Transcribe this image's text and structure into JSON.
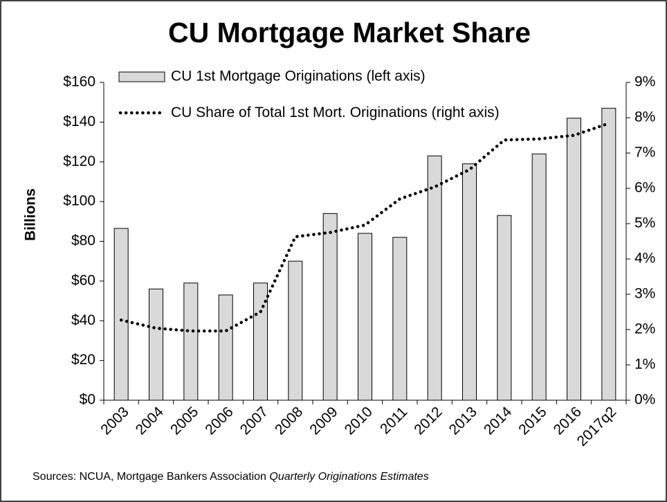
{
  "chart_data": {
    "type": "bar-line",
    "title": "CU Mortgage Market Share",
    "y_label": "Billions",
    "categories": [
      "2003",
      "2004",
      "2005",
      "2006",
      "2007",
      "2008",
      "2009",
      "2010",
      "2011",
      "2012",
      "2013",
      "2014",
      "2015",
      "2016",
      "2017q2"
    ],
    "series": [
      {
        "name": "CU 1st Mortgage Originations (left axis)",
        "type": "bar",
        "color": "#d9d9d9",
        "axis": "y",
        "values": [
          86.5,
          56,
          59,
          53,
          59,
          70,
          94,
          84,
          82,
          123,
          119,
          93,
          124,
          142,
          147
        ]
      },
      {
        "name": "CU Share of Total 1st Mort. Originations (right axis)",
        "type": "line",
        "color": "#000000",
        "axis": "y2",
        "values": [
          2.27,
          2.04,
          1.96,
          1.96,
          2.5,
          4.63,
          4.75,
          4.96,
          5.7,
          6.04,
          6.53,
          7.37,
          7.4,
          7.5,
          7.84
        ]
      }
    ],
    "ylim": [
      0,
      160
    ],
    "yticks": [
      {
        "value": 0,
        "label": "$0"
      },
      {
        "value": 20,
        "label": "$20"
      },
      {
        "value": 40,
        "label": "$40"
      },
      {
        "value": 60,
        "label": "$60"
      },
      {
        "value": 80,
        "label": "$80"
      },
      {
        "value": 100,
        "label": "$100"
      },
      {
        "value": 120,
        "label": "$120"
      },
      {
        "value": 140,
        "label": "$140"
      },
      {
        "value": 160,
        "label": "$160"
      }
    ],
    "y2lim": [
      0,
      9
    ],
    "y2ticks": [
      {
        "value": 0,
        "label": "0%"
      },
      {
        "value": 1,
        "label": "1%"
      },
      {
        "value": 2,
        "label": "2%"
      },
      {
        "value": 3,
        "label": "3%"
      },
      {
        "value": 4,
        "label": "4%"
      },
      {
        "value": 5,
        "label": "5%"
      },
      {
        "value": 6,
        "label": "6%"
      },
      {
        "value": 7,
        "label": "7%"
      },
      {
        "value": 8,
        "label": "8%"
      },
      {
        "value": 9,
        "label": "9%"
      }
    ],
    "source": "Sources: NCUA, Mortgage Bankers Association",
    "source_emphasis": "Quarterly Originations Estimates"
  }
}
